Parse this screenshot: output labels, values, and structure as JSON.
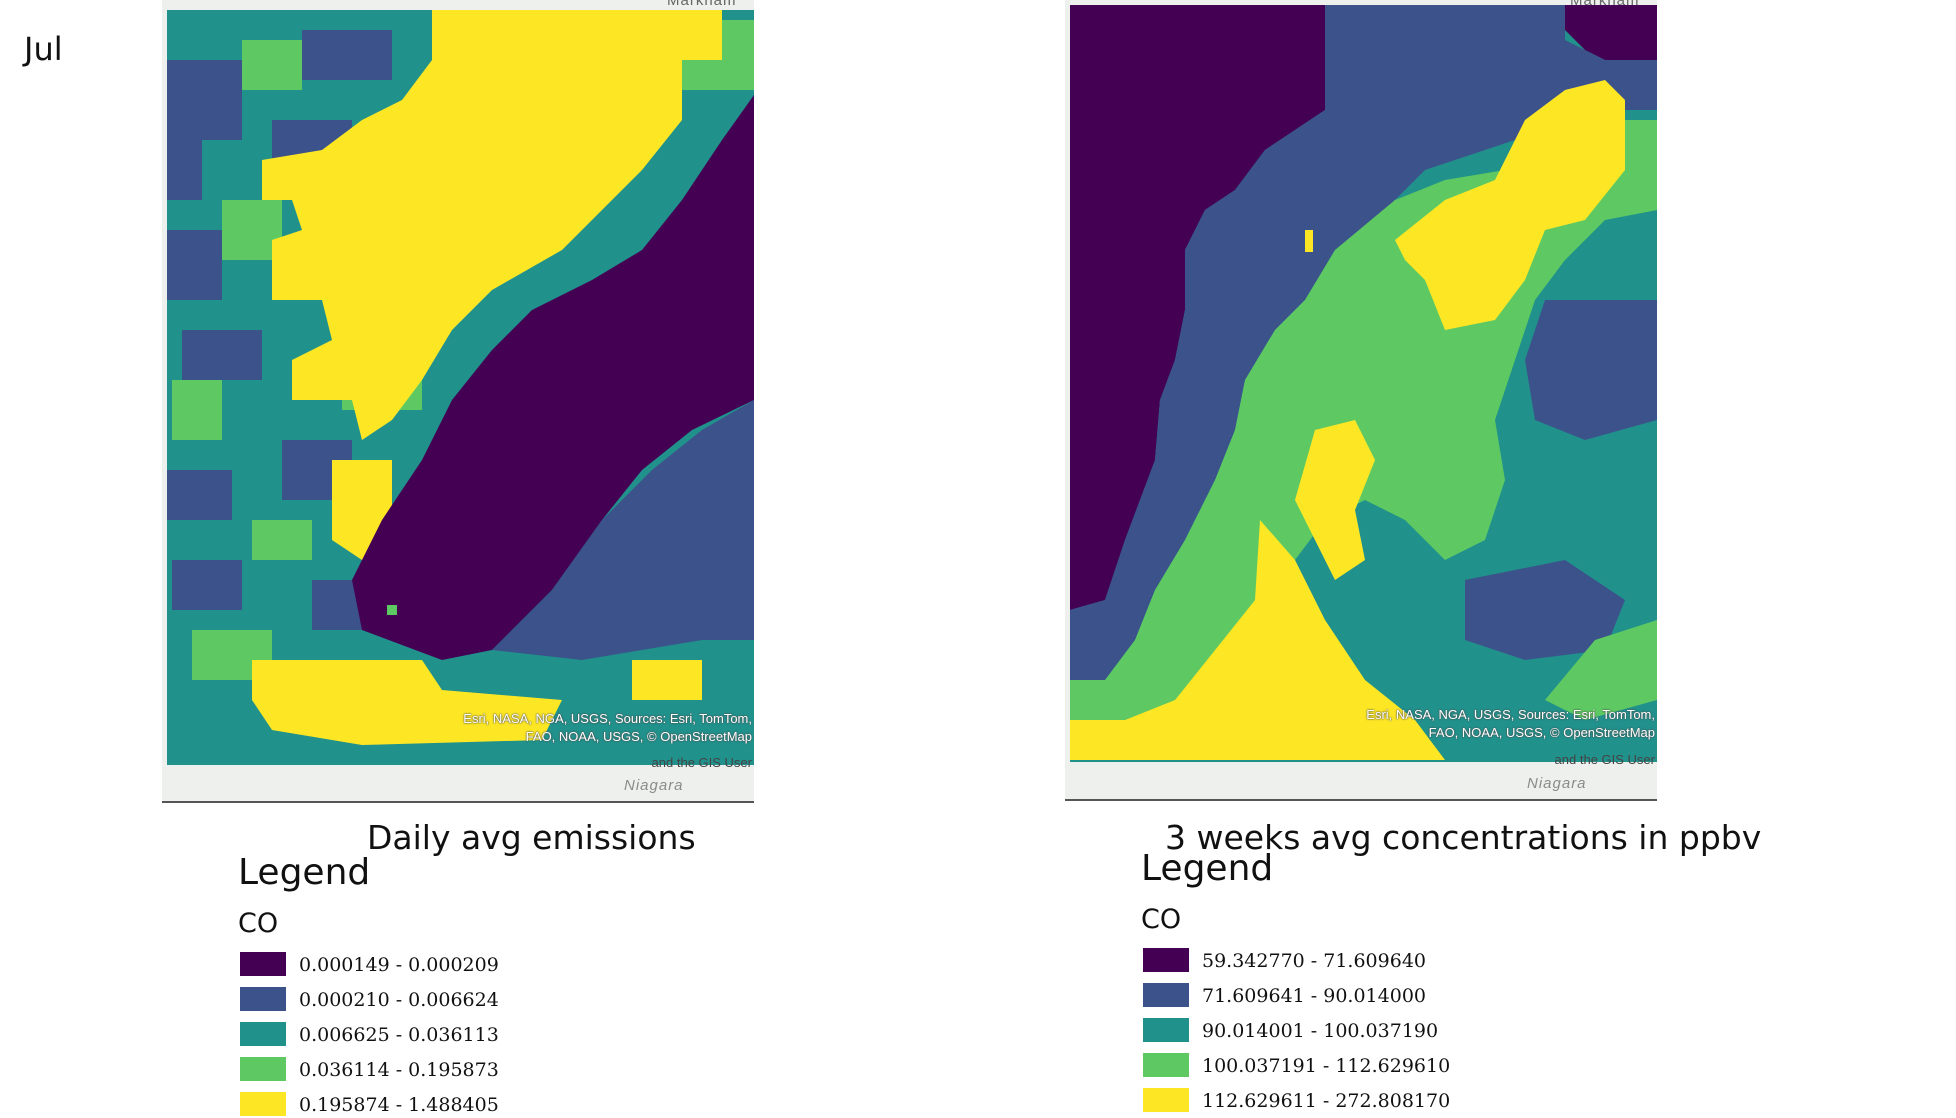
{
  "month_label": "Jul",
  "colors": {
    "dark_purple": "#440154",
    "blue": "#3b528b",
    "teal": "#21918c",
    "green": "#5ec962",
    "yellow": "#fde725"
  },
  "panels": [
    {
      "caption": "Daily avg emissions",
      "top_place": "Markham",
      "bottom_place": "Niagara",
      "credit_lines": [
        "Esri, NASA, NGA, USGS, Sources: Esri, TomTom,",
        "FAO, NOAA, USGS, © OpenStreetMap"
      ],
      "credit_tail": "and the GIS User",
      "legend": {
        "title": "Legend",
        "layer": "CO",
        "items": [
          {
            "range": "0.000149 - 0.000209",
            "color": "#440154"
          },
          {
            "range": "0.000210 - 0.006624",
            "color": "#3b528b"
          },
          {
            "range": "0.006625 - 0.036113",
            "color": "#21918c"
          },
          {
            "range": "0.036114 - 0.195873",
            "color": "#5ec962"
          },
          {
            "range": "0.195874 - 1.488405",
            "color": "#fde725"
          }
        ]
      }
    },
    {
      "caption": "3 weeks avg concentrations in ppbv",
      "top_place": "Markham",
      "bottom_place": "Niagara",
      "credit_lines": [
        "Esri, NASA, NGA, USGS, Sources: Esri, TomTom,",
        "FAO, NOAA, USGS, © OpenStreetMap"
      ],
      "credit_tail": "and the GIS User",
      "legend": {
        "title": "Legend",
        "layer": "CO",
        "items": [
          {
            "range": "59.342770 - 71.609640",
            "color": "#440154"
          },
          {
            "range": "71.609641 - 90.014000",
            "color": "#3b528b"
          },
          {
            "range": "90.014001 - 100.037190",
            "color": "#21918c"
          },
          {
            "range": "100.037191 - 112.629610",
            "color": "#5ec962"
          },
          {
            "range": "112.629611 - 272.808170",
            "color": "#fde725"
          }
        ]
      }
    }
  ]
}
